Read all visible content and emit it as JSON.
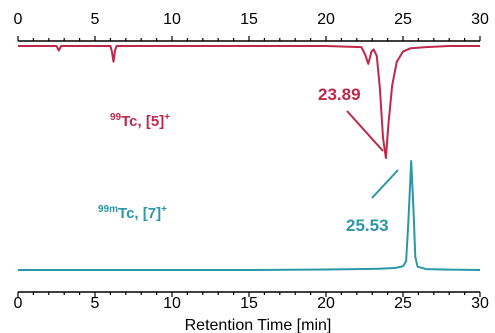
{
  "chart_data": {
    "type": "line",
    "xlabel": "Retention Time [min]",
    "xlim": [
      0,
      30
    ],
    "xticks": [
      "0",
      "5",
      "10",
      "15",
      "20",
      "25",
      "30"
    ],
    "grid": false,
    "series": [
      {
        "name": "99Tc, [5]+",
        "label_sup": "99",
        "label_main": "Tc, [5]",
        "label_charge": "+",
        "color": "#c0284a",
        "direction": "down",
        "peak_label": "23.89",
        "points": [
          [
            0,
            0
          ],
          [
            2.5,
            0
          ],
          [
            2.65,
            0.04
          ],
          [
            2.8,
            0
          ],
          [
            6.0,
            0
          ],
          [
            6.1,
            0.05
          ],
          [
            6.2,
            0.14
          ],
          [
            6.3,
            0.04
          ],
          [
            6.4,
            0
          ],
          [
            20.0,
            0
          ],
          [
            22.3,
            0.01
          ],
          [
            22.55,
            0.08
          ],
          [
            22.75,
            0.16
          ],
          [
            22.95,
            0.05
          ],
          [
            23.1,
            0.03
          ],
          [
            23.3,
            0.09
          ],
          [
            23.5,
            0.38
          ],
          [
            23.7,
            0.82
          ],
          [
            23.89,
            1.0
          ],
          [
            24.05,
            0.7
          ],
          [
            24.3,
            0.35
          ],
          [
            24.6,
            0.14
          ],
          [
            25.0,
            0.05
          ],
          [
            25.5,
            0.02
          ],
          [
            26.5,
            0.01
          ],
          [
            28.0,
            0
          ],
          [
            30.0,
            0
          ]
        ]
      },
      {
        "name": "99mTc, [7]+",
        "label_sup": "99m",
        "label_main": "Tc, [7]",
        "label_charge": "+",
        "color": "#2b98a8",
        "direction": "up",
        "peak_label": "25.53",
        "points": [
          [
            0,
            0
          ],
          [
            15.0,
            0
          ],
          [
            20.0,
            0.005
          ],
          [
            22.0,
            0.008
          ],
          [
            23.0,
            0.01
          ],
          [
            23.5,
            0.012
          ],
          [
            24.5,
            0.018
          ],
          [
            25.0,
            0.035
          ],
          [
            25.2,
            0.08
          ],
          [
            25.35,
            0.45
          ],
          [
            25.53,
            1.0
          ],
          [
            25.68,
            0.55
          ],
          [
            25.8,
            0.12
          ],
          [
            25.95,
            0.03
          ],
          [
            26.5,
            0.008
          ],
          [
            28.0,
            0.004
          ],
          [
            30.0,
            0
          ]
        ]
      }
    ]
  }
}
